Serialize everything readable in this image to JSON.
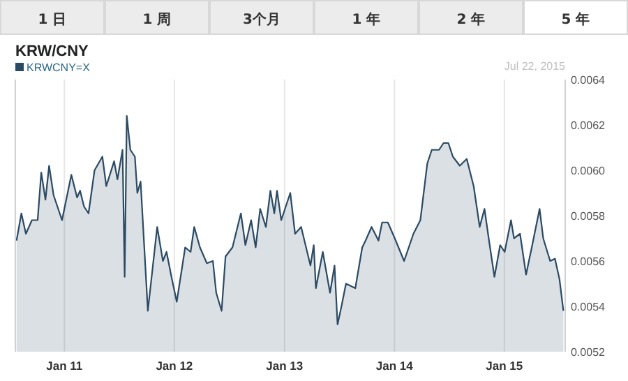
{
  "chart_data": {
    "type": "area",
    "title": "KRW/CNY",
    "annotations": [
      "1 日",
      "1 周",
      "3个月",
      "1 年",
      "2 年",
      "5 年",
      "Jul 22, 2015"
    ],
    "xlim": [
      "2010-07-22",
      "2015-07-22"
    ],
    "xticks": [
      {
        "value": "2011-01-01",
        "label": "Jan 11"
      },
      {
        "value": "2012-01-01",
        "label": "Jan 12"
      },
      {
        "value": "2013-01-01",
        "label": "Jan 13"
      },
      {
        "value": "2014-01-01",
        "label": "Jan 14"
      },
      {
        "value": "2015-01-01",
        "label": "Jan 15"
      }
    ],
    "ylim": [
      0.0052,
      0.0064
    ],
    "yticks": [
      0.0052,
      0.0054,
      0.0056,
      0.0058,
      {
        "value": 0.006,
        "label": "0.0060"
      },
      0.0062,
      0.0064
    ],
    "grid": "x",
    "legend": "top left",
    "x": [
      "2010-07-26",
      "2010-08-11",
      "2010-08-26",
      "2010-09-15",
      "2010-10-04",
      "2010-10-16",
      "2010-10-30",
      "2010-11-11",
      "2010-11-26",
      "2010-12-24",
      "2011-01-24",
      "2011-02-12",
      "2011-02-22",
      "2011-03-07",
      "2011-03-22",
      "2011-04-11",
      "2011-05-07",
      "2011-05-20",
      "2011-06-15",
      "2011-06-26",
      "2011-07-13",
      "2011-07-20",
      "2011-07-27",
      "2011-08-08",
      "2011-08-23",
      "2011-08-31",
      "2011-09-11",
      "2011-10-05",
      "2011-11-05",
      "2011-11-24",
      "2011-12-06",
      "2011-12-24",
      "2012-01-09",
      "2012-02-06",
      "2012-02-24",
      "2012-03-07",
      "2012-03-26",
      "2012-04-18",
      "2012-05-08",
      "2012-05-19",
      "2012-06-06",
      "2012-06-19",
      "2012-07-12",
      "2012-08-09",
      "2012-08-24",
      "2012-09-12",
      "2012-09-27",
      "2012-10-12",
      "2012-10-31",
      "2012-11-15",
      "2012-11-28",
      "2012-12-07",
      "2012-12-21",
      "2013-01-20",
      "2013-02-05",
      "2013-02-25",
      "2013-03-28",
      "2013-04-08",
      "2013-04-15",
      "2013-05-08",
      "2013-06-01",
      "2013-06-16",
      "2013-06-26",
      "2013-07-09",
      "2013-07-24",
      "2013-08-24",
      "2013-09-16",
      "2013-09-27",
      "2013-10-17",
      "2013-11-09",
      "2013-11-21",
      "2013-12-10",
      "2014-01-02",
      "2014-02-02",
      "2014-03-05",
      "2014-03-28",
      "2014-04-20",
      "2014-05-05",
      "2014-05-29",
      "2014-06-13",
      "2014-06-29",
      "2014-07-14",
      "2014-08-06",
      "2014-08-29",
      "2014-09-21",
      "2014-10-11",
      "2014-10-27",
      "2014-11-11",
      "2014-11-29",
      "2014-12-18",
      "2015-01-02",
      "2015-01-23",
      "2015-02-02",
      "2015-02-22",
      "2015-03-14",
      "2015-04-02",
      "2015-04-28",
      "2015-05-10",
      "2015-06-02",
      "2015-06-18",
      "2015-07-03",
      "2015-07-16"
    ],
    "series": [
      {
        "name": "KRWCNY=X",
        "color": "#2b4a63",
        "values": [
          0.00569,
          0.00581,
          0.00572,
          0.00578,
          0.00578,
          0.00599,
          0.00587,
          0.00602,
          0.00589,
          0.00578,
          0.00598,
          0.00588,
          0.00591,
          0.00584,
          0.00581,
          0.006,
          0.00606,
          0.00593,
          0.00604,
          0.00596,
          0.00609,
          0.00553,
          0.00624,
          0.00609,
          0.00606,
          0.0059,
          0.00595,
          0.00538,
          0.00575,
          0.0056,
          0.00564,
          0.00552,
          0.00542,
          0.00566,
          0.00564,
          0.00575,
          0.00566,
          0.00559,
          0.0056,
          0.00546,
          0.00538,
          0.00562,
          0.00566,
          0.00581,
          0.00567,
          0.00578,
          0.00566,
          0.00583,
          0.00575,
          0.00591,
          0.00581,
          0.00591,
          0.00578,
          0.0059,
          0.00572,
          0.00575,
          0.00558,
          0.00567,
          0.00548,
          0.00564,
          0.00546,
          0.00558,
          0.00532,
          0.0054,
          0.0055,
          0.00548,
          0.00566,
          0.00569,
          0.00575,
          0.00569,
          0.00577,
          0.00577,
          0.0057,
          0.0056,
          0.00572,
          0.00578,
          0.00603,
          0.00609,
          0.00609,
          0.00612,
          0.00612,
          0.00606,
          0.00602,
          0.00605,
          0.00593,
          0.00575,
          0.00583,
          0.00569,
          0.00553,
          0.00567,
          0.00564,
          0.00578,
          0.0057,
          0.00572,
          0.00554,
          0.00566,
          0.00583,
          0.0057,
          0.0056,
          0.00561,
          0.00552,
          0.00538
        ]
      }
    ]
  }
}
